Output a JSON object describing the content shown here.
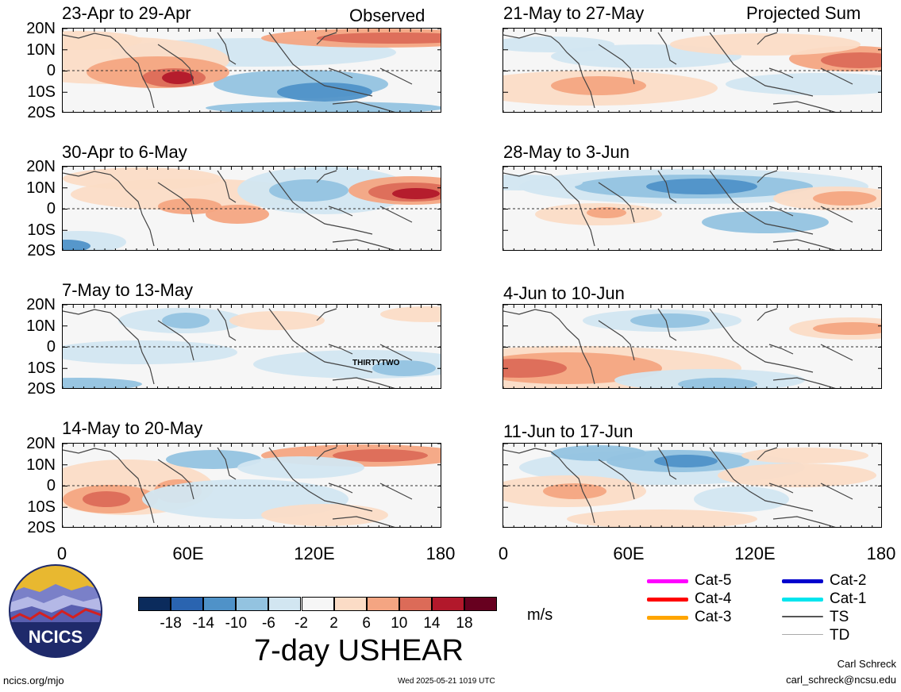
{
  "header": {
    "left_tag": "Observed",
    "right_tag": "Projected Sum"
  },
  "panels": {
    "l1": {
      "title": "23-Apr to 29-Apr"
    },
    "l2": {
      "title": "30-Apr to 6-May"
    },
    "l3": {
      "title": "7-May to 13-May",
      "storm_label": "THIRTYTWO"
    },
    "l4": {
      "title": "14-May to 20-May"
    },
    "r1": {
      "title": "21-May to 27-May"
    },
    "r2": {
      "title": "28-May to 3-Jun"
    },
    "r3": {
      "title": "4-Jun to 10-Jun"
    },
    "r4": {
      "title": "11-Jun to 17-Jun"
    }
  },
  "lat_labels": [
    "20N",
    "10N",
    "0",
    "10S",
    "20S"
  ],
  "lon_labels": [
    "0",
    "60E",
    "120E",
    "180"
  ],
  "colorbar": {
    "colors": [
      "#0b2b5c",
      "#2a64b0",
      "#4f92c8",
      "#93c3e0",
      "#d2e6f1",
      "#f6f6f6",
      "#fbdcc6",
      "#f4a582",
      "#dc6b58",
      "#b2182b",
      "#67001f"
    ],
    "labels": [
      "-18",
      "-14",
      "-10",
      "-6",
      "-2",
      "2",
      "6",
      "10",
      "14",
      "18"
    ],
    "units": "m/s"
  },
  "title": "7-day USHEAR",
  "legend": [
    {
      "label": "Cat-5",
      "color": "#ff00ff"
    },
    {
      "label": "Cat-4",
      "color": "#ff0000"
    },
    {
      "label": "Cat-3",
      "color": "#ffa500"
    },
    {
      "label": "Cat-2",
      "color": "#0000cd"
    },
    {
      "label": "Cat-1",
      "color": "#00e5ee"
    },
    {
      "label": "TS",
      "color": "#555555"
    },
    {
      "label": "TD",
      "color": "#aaaaaa"
    }
  ],
  "logo": {
    "text": "NCICS"
  },
  "footer": {
    "url": "ncics.org/mjo",
    "timestamp": "Wed 2025-05-21 1019 UTC",
    "author": "Carl Schreck",
    "email": "carl_schreck@ncsu.edu"
  }
}
